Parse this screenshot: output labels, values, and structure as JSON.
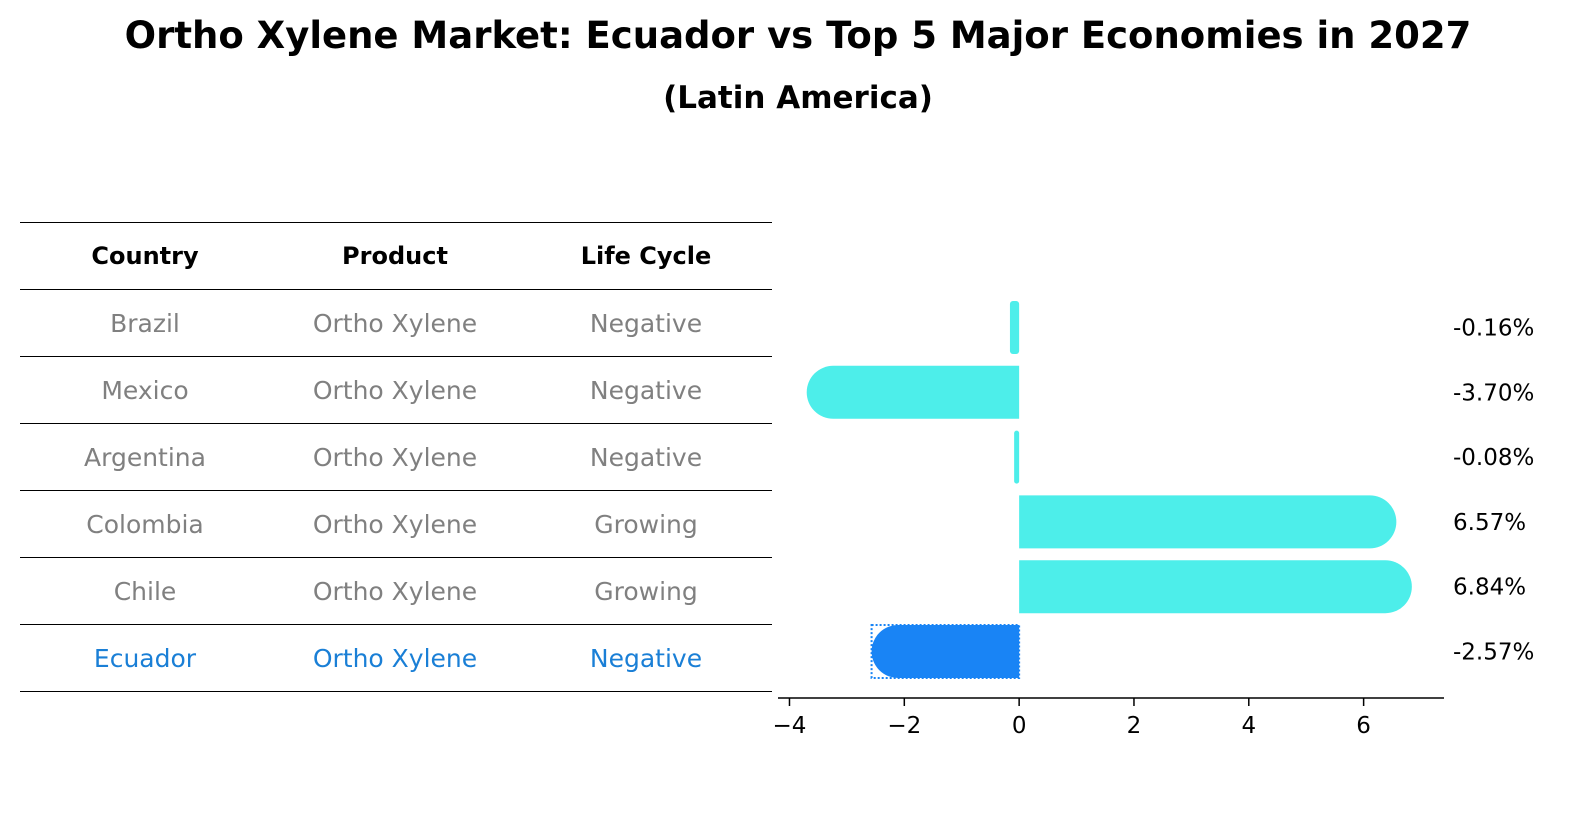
{
  "title": "Ortho Xylene Market: Ecuador vs Top 5 Major Economies in 2027",
  "subtitle": "(Latin America)",
  "table": {
    "headers": [
      "Country",
      "Product",
      "Life Cycle"
    ],
    "rows": [
      [
        "Brazil",
        "Ortho Xylene",
        "Negative"
      ],
      [
        "Mexico",
        "Ortho Xylene",
        "Negative"
      ],
      [
        "Argentina",
        "Ortho Xylene",
        "Negative"
      ],
      [
        "Colombia",
        "Ortho Xylene",
        "Growing"
      ],
      [
        "Chile",
        "Ortho Xylene",
        "Growing"
      ],
      [
        "Ecuador",
        "Ortho Xylene",
        "Negative"
      ]
    ],
    "highlight_row": 5
  },
  "colors": {
    "default_bar": "#4deeea",
    "highlight_bar": "#1984f5",
    "highlight_text": "#1a7fd6",
    "muted_text": "#808080"
  },
  "chart_data": {
    "type": "bar",
    "orientation": "horizontal",
    "categories": [
      "Brazil",
      "Mexico",
      "Argentina",
      "Colombia",
      "Chile",
      "Ecuador"
    ],
    "values": [
      -0.16,
      -3.7,
      -0.08,
      6.57,
      6.84,
      -2.57
    ],
    "value_labels": [
      "-0.16%",
      "-3.70%",
      "-0.08%",
      "6.57%",
      "6.84%",
      "-2.57%"
    ],
    "highlight": "Ecuador",
    "xlim": [
      -4.2,
      7.4
    ],
    "xticks": [
      -4,
      -2,
      0,
      2,
      4,
      6
    ],
    "xtick_labels": [
      "−4",
      "−2",
      "0",
      "2",
      "4",
      "6"
    ],
    "grid": false
  }
}
